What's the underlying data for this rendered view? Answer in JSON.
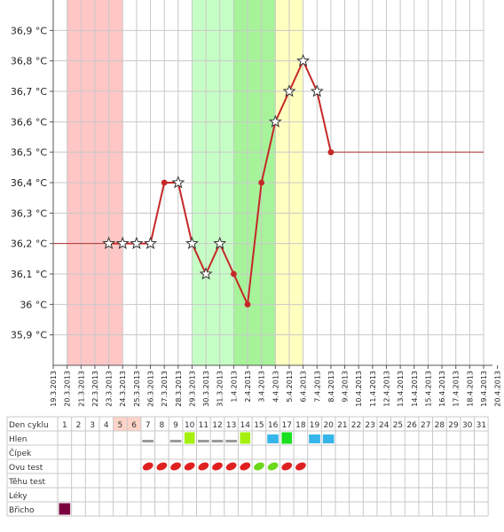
{
  "chart_data": {
    "type": "line",
    "title": "",
    "xlabel": "",
    "ylabel": "",
    "ylim": [
      35.8,
      37.0
    ],
    "y_ticks": [
      {
        "value": 35.9,
        "label": "35,9 °C"
      },
      {
        "value": 36.0,
        "label": "36 °C"
      },
      {
        "value": 36.1,
        "label": "36,1 °C"
      },
      {
        "value": 36.2,
        "label": "36,2 °C"
      },
      {
        "value": 36.3,
        "label": "36,3 °C"
      },
      {
        "value": 36.4,
        "label": "36,4 °C"
      },
      {
        "value": 36.5,
        "label": "36,5 °C"
      },
      {
        "value": 36.6,
        "label": "36,6 °C"
      },
      {
        "value": 36.7,
        "label": "36,7 °C"
      },
      {
        "value": 36.8,
        "label": "36,8 °C"
      },
      {
        "value": 36.9,
        "label": "36,9 °C"
      }
    ],
    "x_dates": [
      "19.3.2013",
      "20.3.2013",
      "21.3.2013",
      "22.3.2013",
      "23.3.2013",
      "24.3.2013",
      "25.3.2013",
      "26.3.2013",
      "27.3.2013",
      "28.3.2013",
      "29.3.2013",
      "30.3.2013",
      "31.3.2013",
      "1.4.2013",
      "2.4.2013",
      "3.4.2013",
      "4.4.2013",
      "5.4.2013",
      "6.4.2013",
      "7.4.2013",
      "8.4.2013",
      "9.4.2013",
      "10.4.2013",
      "11.4.2013",
      "12.4.2013",
      "13.4.2013",
      "14.4.2013",
      "15.4.2013",
      "16.4.2013",
      "17.4.2013",
      "18.4.2013",
      "19.4.2013",
      "20.4.2013"
    ],
    "grid": true,
    "bands": [
      {
        "from": "20.3.2013",
        "to": "24.3.2013",
        "color": "#ffc6c6"
      },
      {
        "from": "29.3.2013",
        "to": "1.4.2013",
        "color": "#c6ffc6"
      },
      {
        "from": "1.4.2013",
        "to": "4.4.2013",
        "color": "#a6f39a"
      },
      {
        "from": "4.4.2013",
        "to": "6.4.2013",
        "color": "#ffffc0"
      }
    ],
    "baseline_before": {
      "from": "19.3.2013",
      "to": "23.3.2013",
      "value": 36.2
    },
    "baseline_after": {
      "from": "8.4.2013",
      "to": "19.4.2013",
      "value": 36.5
    },
    "series": [
      {
        "color": "#c62828",
        "points": [
          {
            "x": "23.3.2013",
            "y": 36.2,
            "marker": "star"
          },
          {
            "x": "24.3.2013",
            "y": 36.2,
            "marker": "star"
          },
          {
            "x": "25.3.2013",
            "y": 36.2,
            "marker": "star"
          },
          {
            "x": "26.3.2013",
            "y": 36.2,
            "marker": "star"
          },
          {
            "x": "27.3.2013",
            "y": 36.4,
            "marker": "dot"
          },
          {
            "x": "28.3.2013",
            "y": 36.4,
            "marker": "star"
          },
          {
            "x": "29.3.2013",
            "y": 36.2,
            "marker": "star"
          },
          {
            "x": "30.3.2013",
            "y": 36.1,
            "marker": "star"
          },
          {
            "x": "31.3.2013",
            "y": 36.2,
            "marker": "star"
          },
          {
            "x": "1.4.2013",
            "y": 36.1,
            "marker": "dot"
          },
          {
            "x": "2.4.2013",
            "y": 36.0,
            "marker": "dot"
          },
          {
            "x": "3.4.2013",
            "y": 36.4,
            "marker": "dot"
          },
          {
            "x": "4.4.2013",
            "y": 36.6,
            "marker": "star"
          },
          {
            "x": "5.4.2013",
            "y": 36.7,
            "marker": "star"
          },
          {
            "x": "6.4.2013",
            "y": 36.8,
            "marker": "star"
          },
          {
            "x": "7.4.2013",
            "y": 36.7,
            "marker": "star"
          },
          {
            "x": "8.4.2013",
            "y": 36.5,
            "marker": "dot"
          }
        ]
      }
    ]
  },
  "cycle_table": {
    "rows": [
      {
        "label": "Den cyklu"
      },
      {
        "label": "Hlen"
      },
      {
        "label": "Čípek"
      },
      {
        "label": "Ovu test"
      },
      {
        "label": "Těhu test"
      },
      {
        "label": "Léky"
      },
      {
        "label": "Břicho"
      }
    ],
    "days": [
      "1",
      "2",
      "3",
      "4",
      "5",
      "6",
      "7",
      "8",
      "9",
      "10",
      "11",
      "12",
      "13",
      "14",
      "15",
      "16",
      "17",
      "18",
      "19",
      "20",
      "21",
      "22",
      "23",
      "24",
      "25",
      "26",
      "27",
      "28",
      "29",
      "30",
      "31"
    ],
    "highlight_days": [
      5,
      6
    ],
    "highlight_color": "#ffd4c8",
    "hlen_marks": [
      {
        "day": 7,
        "kind": "gray-bar",
        "color": "#9a9a9a"
      },
      {
        "day": 9,
        "kind": "gray-bar",
        "color": "#9a9a9a"
      },
      {
        "day": 10,
        "kind": "square",
        "color": "#a6f010"
      },
      {
        "day": 11,
        "kind": "gray-bar",
        "color": "#9a9a9a"
      },
      {
        "day": 12,
        "kind": "gray-bar",
        "color": "#9a9a9a"
      },
      {
        "day": 13,
        "kind": "gray-bar",
        "color": "#9a9a9a"
      },
      {
        "day": 14,
        "kind": "square",
        "color": "#a6f010"
      },
      {
        "day": 16,
        "kind": "blue-bar",
        "color": "#36b6e8"
      },
      {
        "day": 17,
        "kind": "square",
        "color": "#19e020"
      },
      {
        "day": 19,
        "kind": "blue-bar",
        "color": "#36b6e8"
      },
      {
        "day": 20,
        "kind": "blue-bar",
        "color": "#36b6e8"
      }
    ],
    "ovu_marks": [
      {
        "day": 7,
        "color": "#e02020"
      },
      {
        "day": 8,
        "color": "#e02020"
      },
      {
        "day": 9,
        "color": "#e02020"
      },
      {
        "day": 10,
        "color": "#e02020"
      },
      {
        "day": 11,
        "color": "#e02020"
      },
      {
        "day": 12,
        "color": "#e02020"
      },
      {
        "day": 13,
        "color": "#e02020"
      },
      {
        "day": 14,
        "color": "#e02020"
      },
      {
        "day": 15,
        "color": "#6cd81c"
      },
      {
        "day": 16,
        "color": "#6cd81c"
      },
      {
        "day": 17,
        "color": "#e02020"
      },
      {
        "day": 18,
        "color": "#e02020"
      }
    ],
    "bricho_marks": [
      {
        "day": 1,
        "color": "#7a0040"
      }
    ]
  }
}
